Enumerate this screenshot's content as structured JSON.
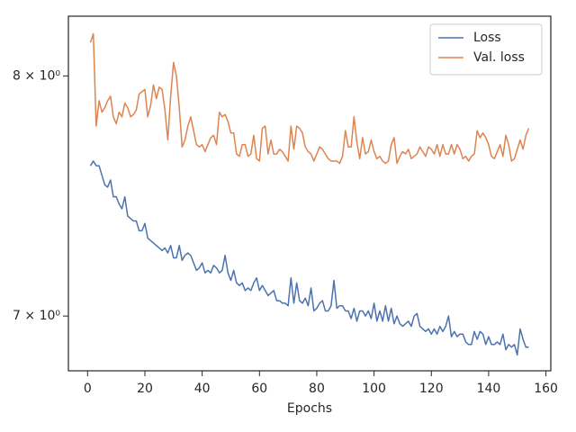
{
  "chart_data": {
    "type": "line",
    "xlabel": "Epochs",
    "yscale": "log",
    "legend": "upper right",
    "xlim": [
      -6.7,
      161.7
    ],
    "xticks": [
      0,
      20,
      40,
      60,
      80,
      100,
      120,
      140,
      160
    ],
    "ylim": [
      6.79,
      8.27
    ],
    "yticks": [
      {
        "value": 7,
        "label": "7 × 10⁰"
      },
      {
        "value": 8,
        "label": "8 × 10⁰"
      }
    ],
    "x": [
      1,
      2,
      3,
      4,
      5,
      6,
      7,
      8,
      9,
      10,
      11,
      12,
      13,
      14,
      15,
      16,
      17,
      18,
      19,
      20,
      21,
      22,
      23,
      24,
      25,
      26,
      27,
      28,
      29,
      30,
      31,
      32,
      33,
      34,
      35,
      36,
      37,
      38,
      39,
      40,
      41,
      42,
      43,
      44,
      45,
      46,
      47,
      48,
      49,
      50,
      51,
      52,
      53,
      54,
      55,
      56,
      57,
      58,
      59,
      60,
      61,
      62,
      63,
      64,
      65,
      66,
      67,
      68,
      69,
      70,
      71,
      72,
      73,
      74,
      75,
      76,
      77,
      78,
      79,
      80,
      81,
      82,
      83,
      84,
      85,
      86,
      87,
      88,
      89,
      90,
      91,
      92,
      93,
      94,
      95,
      96,
      97,
      98,
      99,
      100,
      101,
      102,
      103,
      104,
      105,
      106,
      107,
      108,
      109,
      110,
      111,
      112,
      113,
      114,
      115,
      116,
      117,
      118,
      119,
      120,
      121,
      122,
      123,
      124,
      125,
      126,
      127,
      128,
      129,
      130,
      131,
      132,
      133,
      134,
      135,
      136,
      137,
      138,
      139,
      140,
      141,
      142,
      143,
      144,
      145,
      146,
      147,
      148,
      149,
      150,
      151,
      152,
      153,
      154
    ],
    "series": [
      {
        "name": "Loss",
        "color": "#4c72b0",
        "values": [
          7.61,
          7.63,
          7.61,
          7.61,
          7.57,
          7.53,
          7.52,
          7.55,
          7.48,
          7.48,
          7.45,
          7.43,
          7.48,
          7.4,
          7.39,
          7.38,
          7.38,
          7.34,
          7.34,
          7.37,
          7.31,
          7.3,
          7.29,
          7.28,
          7.27,
          7.26,
          7.27,
          7.25,
          7.28,
          7.23,
          7.23,
          7.28,
          7.22,
          7.24,
          7.25,
          7.24,
          7.21,
          7.18,
          7.19,
          7.21,
          7.17,
          7.18,
          7.17,
          7.2,
          7.19,
          7.17,
          7.18,
          7.24,
          7.17,
          7.14,
          7.18,
          7.13,
          7.12,
          7.13,
          7.1,
          7.11,
          7.1,
          7.13,
          7.15,
          7.1,
          7.12,
          7.1,
          7.08,
          7.09,
          7.1,
          7.06,
          7.06,
          7.05,
          7.05,
          7.04,
          7.15,
          7.05,
          7.13,
          7.06,
          7.05,
          7.07,
          7.04,
          7.11,
          7.02,
          7.03,
          7.05,
          7.06,
          7.02,
          7.02,
          7.04,
          7.14,
          7.03,
          7.04,
          7.04,
          7.02,
          7.02,
          6.99,
          7.03,
          6.98,
          7.02,
          7.02,
          7.0,
          7.02,
          6.99,
          7.05,
          6.98,
          7.02,
          6.98,
          7.04,
          6.98,
          7.03,
          6.97,
          7.0,
          6.97,
          6.96,
          6.97,
          6.98,
          6.96,
          7.0,
          7.01,
          6.96,
          6.95,
          6.94,
          6.95,
          6.93,
          6.95,
          6.93,
          6.96,
          6.94,
          6.96,
          7.0,
          6.92,
          6.94,
          6.92,
          6.93,
          6.93,
          6.9,
          6.89,
          6.89,
          6.94,
          6.91,
          6.94,
          6.93,
          6.89,
          6.92,
          6.89,
          6.89,
          6.9,
          6.89,
          6.93,
          6.87,
          6.89,
          6.88,
          6.89,
          6.85,
          6.95,
          6.91,
          6.88,
          6.88
        ]
      },
      {
        "name": "Val. loss",
        "color": "#dd8452",
        "values": [
          8.15,
          8.19,
          7.78,
          7.89,
          7.84,
          7.86,
          7.89,
          7.91,
          7.82,
          7.79,
          7.84,
          7.82,
          7.88,
          7.86,
          7.82,
          7.83,
          7.85,
          7.92,
          7.93,
          7.94,
          7.82,
          7.87,
          7.96,
          7.9,
          7.95,
          7.94,
          7.85,
          7.72,
          7.91,
          8.06,
          8.0,
          7.86,
          7.69,
          7.72,
          7.78,
          7.82,
          7.76,
          7.7,
          7.69,
          7.7,
          7.67,
          7.7,
          7.73,
          7.74,
          7.7,
          7.84,
          7.82,
          7.83,
          7.8,
          7.75,
          7.75,
          7.66,
          7.65,
          7.7,
          7.7,
          7.65,
          7.66,
          7.74,
          7.64,
          7.63,
          7.77,
          7.78,
          7.66,
          7.72,
          7.66,
          7.66,
          7.68,
          7.67,
          7.65,
          7.63,
          7.78,
          7.68,
          7.78,
          7.77,
          7.75,
          7.69,
          7.67,
          7.66,
          7.63,
          7.66,
          7.69,
          7.68,
          7.66,
          7.64,
          7.63,
          7.63,
          7.63,
          7.62,
          7.65,
          7.76,
          7.69,
          7.69,
          7.82,
          7.71,
          7.64,
          7.73,
          7.66,
          7.67,
          7.72,
          7.67,
          7.64,
          7.65,
          7.63,
          7.62,
          7.63,
          7.7,
          7.73,
          7.62,
          7.65,
          7.67,
          7.66,
          7.68,
          7.64,
          7.65,
          7.66,
          7.69,
          7.67,
          7.65,
          7.69,
          7.68,
          7.66,
          7.7,
          7.65,
          7.7,
          7.66,
          7.66,
          7.7,
          7.66,
          7.7,
          7.68,
          7.64,
          7.65,
          7.63,
          7.65,
          7.66,
          7.76,
          7.73,
          7.75,
          7.73,
          7.7,
          7.65,
          7.64,
          7.67,
          7.7,
          7.65,
          7.74,
          7.7,
          7.63,
          7.64,
          7.68,
          7.72,
          7.68,
          7.74,
          7.77
        ]
      }
    ]
  }
}
